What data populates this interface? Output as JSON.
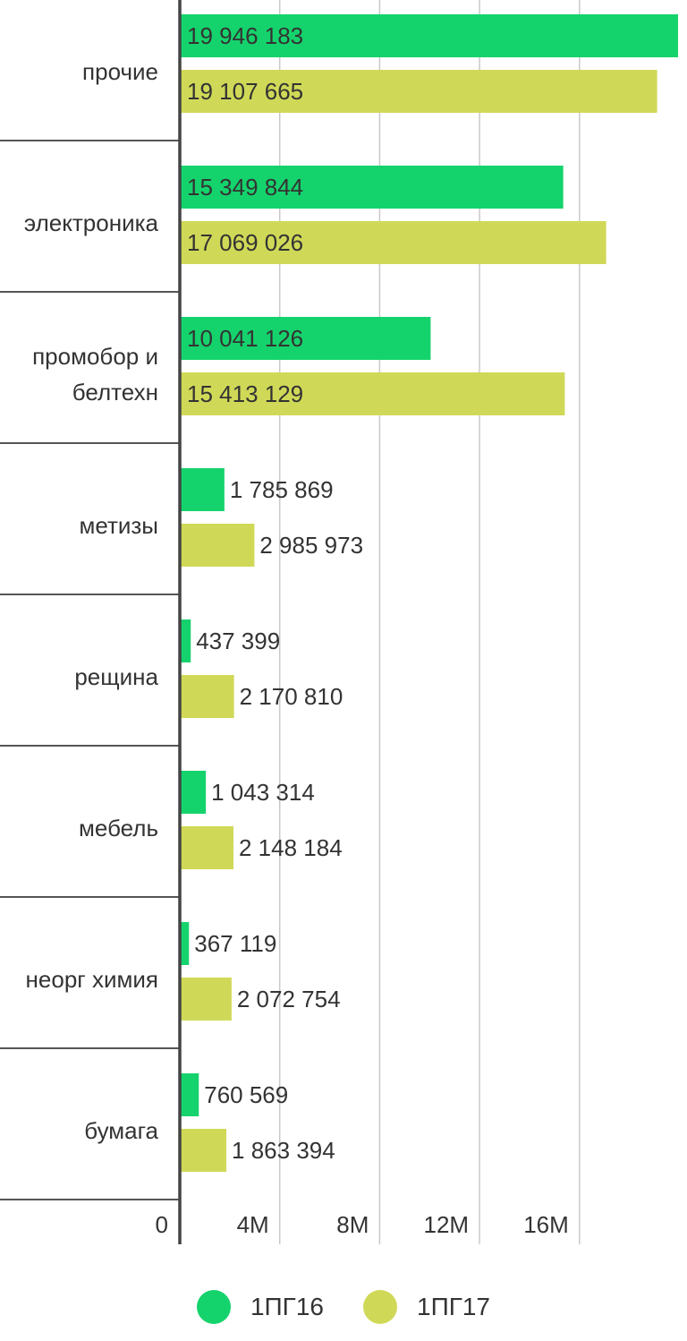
{
  "chart_data": {
    "type": "bar",
    "orientation": "horizontal",
    "categories": [
      "прочие",
      "электроника",
      "промобор и белтехн",
      "метизы",
      "рещина",
      "мебель",
      "неорг химия",
      "бумага"
    ],
    "category_lines": [
      [
        "прочие"
      ],
      [
        "электроника"
      ],
      [
        "промобор и",
        "белтехн"
      ],
      [
        "метизы"
      ],
      [
        "рещина"
      ],
      [
        "мебель"
      ],
      [
        "неорг химия"
      ],
      [
        "бумага"
      ]
    ],
    "series": [
      {
        "name": "1ПГ16",
        "color": "#15d36c",
        "values": [
          19946183,
          15349844,
          10041126,
          1785869,
          437399,
          1043314,
          367119,
          760569
        ],
        "labels": [
          "19 946 183",
          "15 349 844",
          "10 041 126",
          "1 785 869",
          "437 399",
          "1 043 314",
          "367 119",
          "760 569"
        ]
      },
      {
        "name": "1ПГ17",
        "color": "#d0d957",
        "values": [
          19107665,
          17069026,
          15413129,
          2985973,
          2170810,
          2148184,
          2072754,
          1863394
        ],
        "labels": [
          "19 107 665",
          "17 069 026",
          "15 413 129",
          "2 985 973",
          "2 170 810",
          "2 148 184",
          "2 072 754",
          "1 863 394"
        ]
      }
    ],
    "xlim": [
      0,
      20000000
    ],
    "xticks": [
      0,
      4000000,
      8000000,
      12000000,
      16000000
    ],
    "xtick_labels": [
      "0",
      "4M",
      "8M",
      "12M",
      "16M"
    ],
    "grid": true,
    "legend": "bottom",
    "title": "",
    "xlabel": "",
    "ylabel": ""
  }
}
